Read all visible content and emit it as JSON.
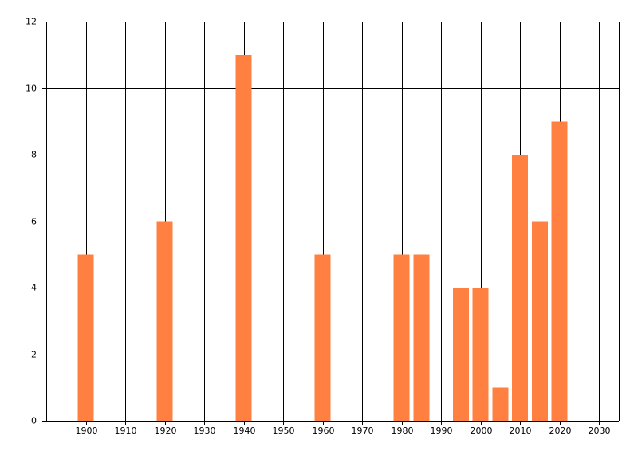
{
  "chart_data": {
    "type": "bar",
    "x": [
      1900,
      1920,
      1940,
      1960,
      1980,
      1985,
      1995,
      2000,
      2005,
      2010,
      2015,
      2020
    ],
    "values": [
      5,
      6,
      11,
      5,
      5,
      5,
      4,
      4,
      1,
      8,
      6,
      9
    ],
    "color": "#ff8040",
    "xlim": [
      1890,
      2035
    ],
    "xticks": [
      1900,
      1910,
      1920,
      1930,
      1940,
      1950,
      1960,
      1970,
      1980,
      1990,
      2000,
      2010,
      2020,
      2030
    ],
    "ylim": [
      0,
      12
    ],
    "yticks": [
      0,
      2,
      4,
      6,
      8,
      10,
      12
    ],
    "grid": true
  }
}
